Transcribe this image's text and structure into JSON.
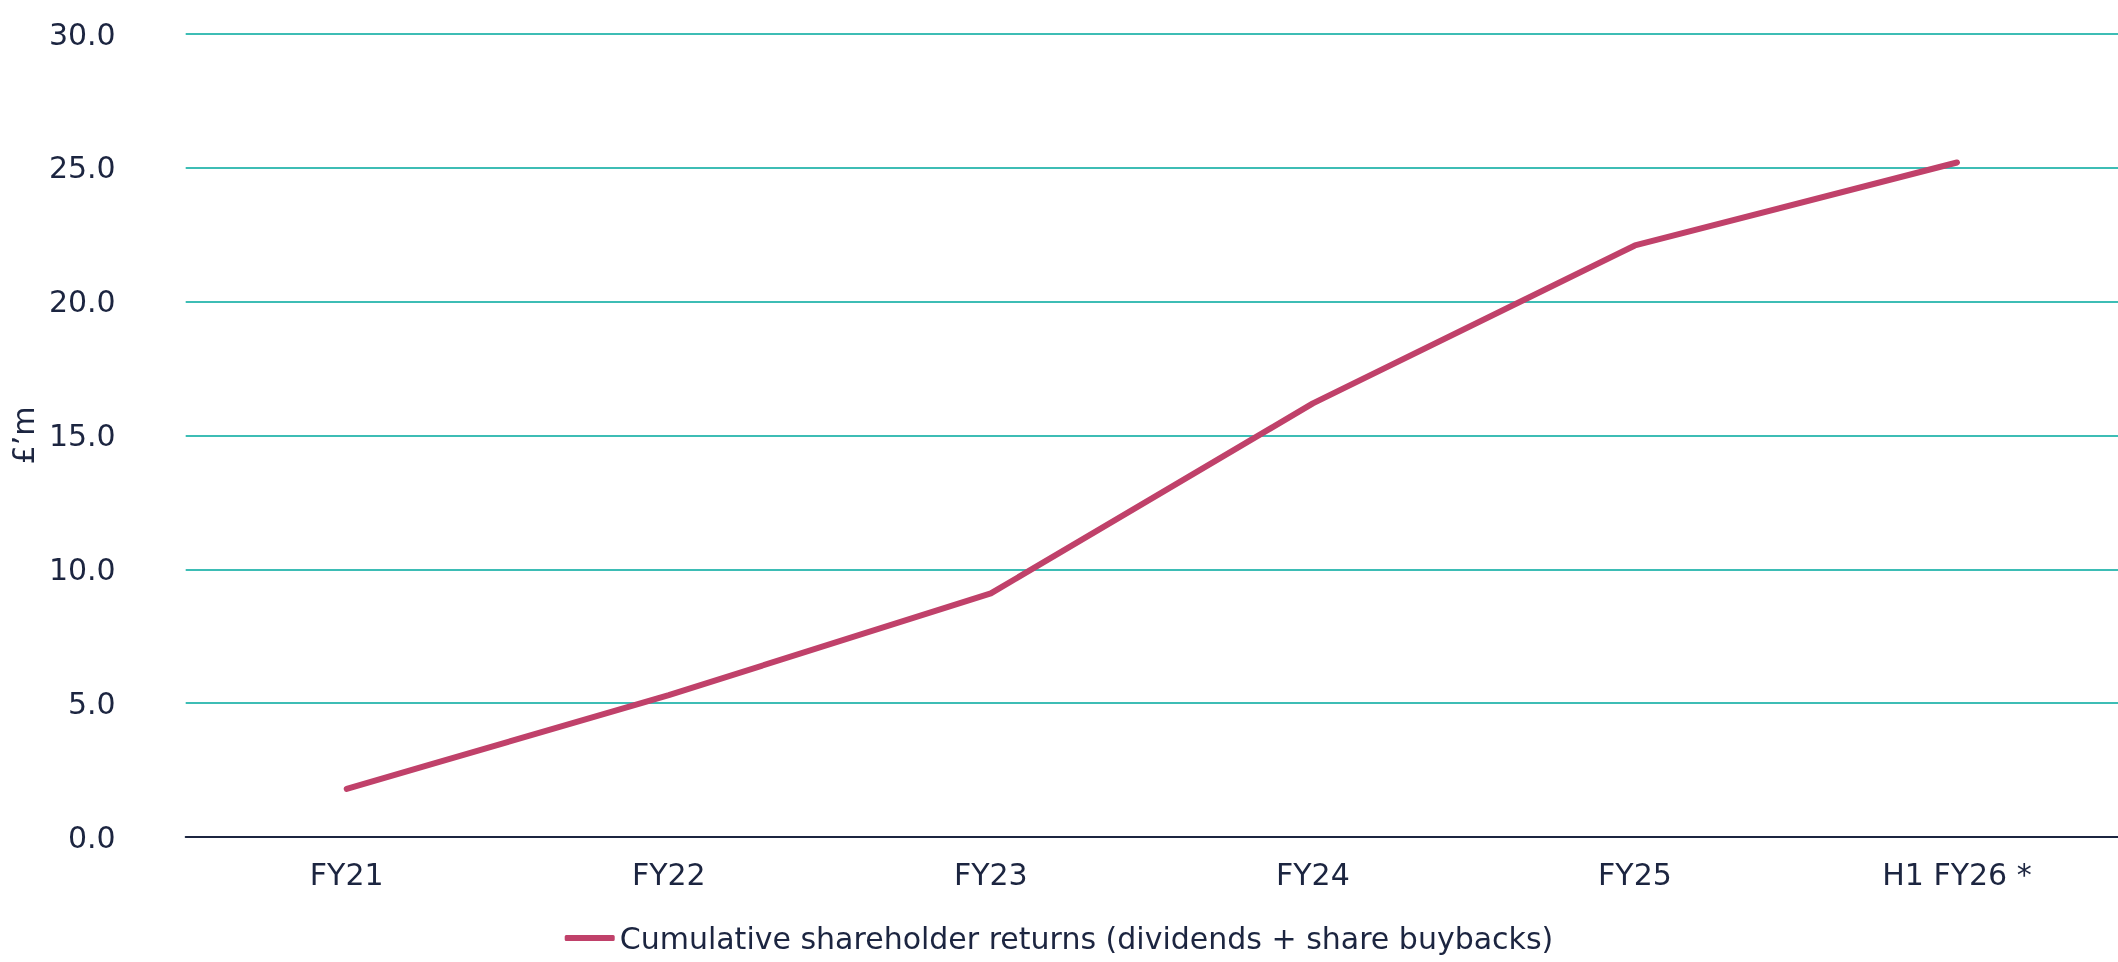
{
  "chart_data": {
    "type": "line",
    "ylabel": "£’m",
    "categories": [
      "FY21",
      "FY22",
      "FY23",
      "FY24",
      "FY25",
      "H1 FY26 *"
    ],
    "series": [
      {
        "name": "Cumulative shareholder returns (dividends + share buybacks)",
        "color": "#c0416a",
        "values": [
          1.8,
          5.3,
          9.1,
          16.2,
          22.1,
          25.2
        ]
      }
    ],
    "ylim": [
      0,
      30
    ],
    "yticks": [
      {
        "value": 0,
        "label": "0.0"
      },
      {
        "value": 5,
        "label": "5.0"
      },
      {
        "value": 10,
        "label": "10.0"
      },
      {
        "value": 15,
        "label": "15.0"
      },
      {
        "value": 20,
        "label": "20.0"
      },
      {
        "value": 25,
        "label": "25.0"
      },
      {
        "value": 30,
        "label": "30.0"
      }
    ],
    "grid": "y",
    "legend": "bottom",
    "marker": "none",
    "line_style": "solid"
  }
}
